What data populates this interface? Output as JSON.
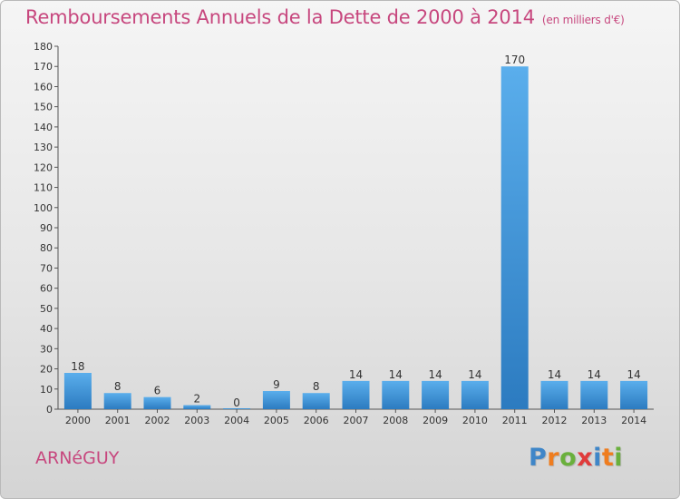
{
  "chart_data": {
    "type": "bar",
    "title": "Remboursements Annuels de la Dette de 2000 à 2014",
    "subtitle": "(en milliers d'€)",
    "xlabel": "",
    "ylabel": "",
    "categories": [
      "2000",
      "2001",
      "2002",
      "2003",
      "2004",
      "2005",
      "2006",
      "2007",
      "2008",
      "2009",
      "2010",
      "2011",
      "2012",
      "2013",
      "2014"
    ],
    "values": [
      18,
      8,
      6,
      2,
      0,
      9,
      8,
      14,
      14,
      14,
      14,
      170,
      14,
      14,
      14
    ],
    "ylim": [
      0,
      180
    ],
    "yticks": [
      0,
      10,
      20,
      30,
      40,
      50,
      60,
      70,
      80,
      90,
      100,
      110,
      120,
      130,
      140,
      150,
      160,
      170,
      180
    ],
    "grid": false,
    "legend": "none",
    "bar_color": "#3d8fd6"
  },
  "footer": {
    "commune": "ARNéGUY"
  },
  "logo": {
    "letters": [
      "P",
      "r",
      "o",
      "x",
      "i",
      "t",
      "i"
    ],
    "colors": [
      "#3f86c8",
      "#ef7d1f",
      "#6ab03c",
      "#e03b3b",
      "#3f86c8",
      "#ef7d1f",
      "#6ab03c"
    ]
  }
}
